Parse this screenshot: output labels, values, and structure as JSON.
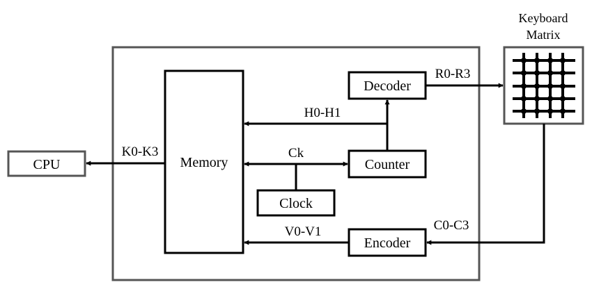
{
  "blocks": {
    "memory": "Memory",
    "decoder": "Decoder",
    "counter": "Counter",
    "clock": "Clock",
    "encoder": "Encoder",
    "cpu": "CPU"
  },
  "keyboard": {
    "title_line1": "Keyboard",
    "title_line2": "Matrix"
  },
  "signals": {
    "k": "K0-K3",
    "h": "H0-H1",
    "ck": "Ck",
    "v": "V0-V1",
    "r": "R0-R3",
    "c": "C0-C3"
  }
}
